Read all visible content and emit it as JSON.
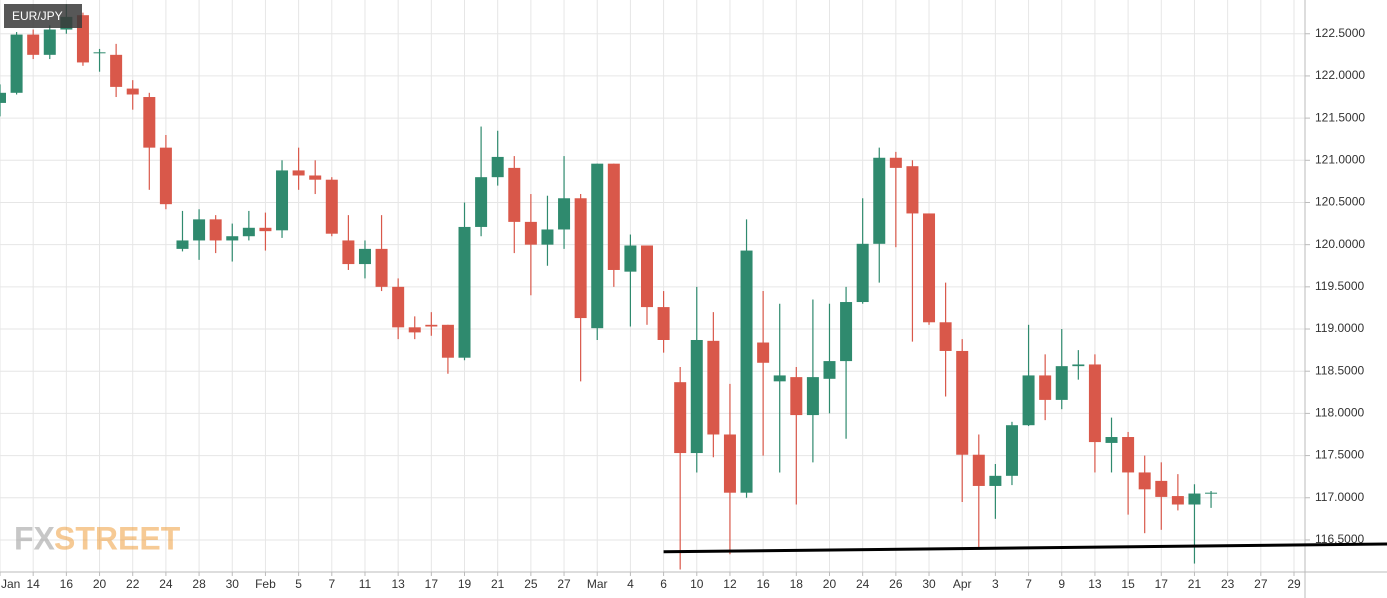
{
  "chart_data": {
    "type": "candlestick",
    "title": "EUR/JPY",
    "watermark": [
      "FX",
      "STREET"
    ],
    "categories": [
      "Jan",
      null,
      "14",
      null,
      "16",
      null,
      "20",
      null,
      "22",
      null,
      "24",
      null,
      "28",
      null,
      "30",
      null,
      "Feb",
      null,
      "5",
      null,
      "7",
      null,
      "11",
      null,
      "13",
      null,
      "17",
      null,
      "19",
      null,
      "21",
      null,
      "25",
      null,
      "27",
      null,
      "Mar",
      null,
      "4",
      null,
      "6",
      null,
      "10",
      null,
      "12",
      null,
      "16",
      null,
      "18",
      null,
      "20",
      null,
      "24",
      null,
      "26",
      null,
      "30",
      null,
      "Apr",
      null,
      "3",
      null,
      "7",
      null,
      "9",
      null,
      "13",
      null,
      "15",
      null,
      "17",
      null,
      "21",
      null,
      "23",
      null,
      "27",
      null,
      "29"
    ],
    "open": [
      121.68,
      121.8,
      122.49,
      122.25,
      122.55,
      122.72,
      122.27,
      122.25,
      121.85,
      121.75,
      121.15,
      119.95,
      120.05,
      120.3,
      120.05,
      120.1,
      120.2,
      120.17,
      120.88,
      120.82,
      120.77,
      120.05,
      119.77,
      119.95,
      119.5,
      119.02,
      119.05,
      119.05,
      118.66,
      120.21,
      120.8,
      120.91,
      120.27,
      120.0,
      120.18,
      120.55,
      119.01,
      120.96,
      119.68,
      119.99,
      119.26,
      118.37,
      117.53,
      118.86,
      117.75,
      117.06,
      118.84,
      118.38,
      118.43,
      117.98,
      118.41,
      118.62,
      119.32,
      120.01,
      121.03,
      120.93,
      120.37,
      119.08,
      118.74,
      117.51,
      117.14,
      117.26,
      117.86,
      118.45,
      118.16,
      118.56,
      118.58,
      117.65,
      117.72,
      117.3,
      117.2,
      117.02,
      116.92,
      117.05,
      null,
      null,
      null,
      null,
      null
    ],
    "high": [
      121.9,
      122.52,
      122.55,
      122.6,
      122.85,
      122.75,
      122.32,
      122.38,
      121.95,
      121.8,
      121.3,
      120.4,
      120.42,
      120.35,
      120.25,
      120.4,
      120.38,
      121.0,
      121.15,
      121.0,
      120.8,
      120.35,
      120.05,
      120.35,
      119.6,
      119.15,
      119.2,
      119.05,
      120.5,
      121.4,
      121.35,
      121.05,
      120.6,
      120.58,
      121.05,
      120.6,
      120.96,
      120.96,
      120.12,
      119.99,
      119.45,
      118.55,
      119.5,
      119.2,
      118.35,
      120.3,
      119.45,
      119.3,
      118.55,
      119.35,
      119.3,
      119.5,
      120.55,
      121.15,
      121.1,
      121.0,
      120.37,
      119.55,
      118.88,
      117.75,
      117.4,
      117.9,
      119.05,
      118.7,
      119.0,
      118.75,
      118.7,
      117.95,
      117.78,
      117.5,
      117.42,
      117.28,
      117.16,
      117.08,
      null,
      null,
      null,
      null,
      null
    ],
    "low": [
      121.52,
      121.78,
      122.2,
      122.2,
      122.5,
      122.12,
      122.05,
      121.75,
      121.6,
      120.65,
      120.42,
      119.92,
      119.82,
      119.9,
      119.8,
      120.05,
      119.93,
      120.08,
      120.65,
      120.6,
      120.1,
      119.7,
      119.6,
      119.45,
      118.88,
      118.88,
      118.92,
      118.47,
      118.63,
      120.1,
      120.7,
      119.9,
      119.4,
      119.75,
      119.95,
      118.38,
      118.87,
      119.5,
      119.03,
      119.05,
      118.72,
      116.15,
      117.3,
      117.48,
      116.33,
      117.0,
      117.5,
      117.3,
      116.92,
      117.42,
      118.0,
      117.7,
      119.3,
      119.55,
      119.97,
      118.85,
      119.05,
      118.2,
      116.95,
      116.4,
      116.75,
      117.15,
      117.85,
      117.92,
      118.05,
      118.4,
      117.3,
      117.3,
      116.8,
      116.58,
      116.62,
      116.85,
      116.22,
      116.88,
      null,
      null,
      null,
      null,
      null
    ],
    "close": [
      121.8,
      122.49,
      122.25,
      122.55,
      122.7,
      122.16,
      122.28,
      121.87,
      121.78,
      121.15,
      120.48,
      120.05,
      120.3,
      120.05,
      120.1,
      120.2,
      120.16,
      120.88,
      120.82,
      120.77,
      120.13,
      119.77,
      119.95,
      119.5,
      119.02,
      118.96,
      119.03,
      118.66,
      120.21,
      120.8,
      121.04,
      120.27,
      120.0,
      120.18,
      120.55,
      119.13,
      120.96,
      119.7,
      119.99,
      119.26,
      118.87,
      117.53,
      118.87,
      117.75,
      117.06,
      119.93,
      118.6,
      118.45,
      117.98,
      118.43,
      118.62,
      119.32,
      120.01,
      121.03,
      120.91,
      120.37,
      119.08,
      118.74,
      117.51,
      117.14,
      117.26,
      117.86,
      118.45,
      118.16,
      118.56,
      118.58,
      117.66,
      117.72,
      117.3,
      117.1,
      117.01,
      116.92,
      117.05,
      117.06,
      null,
      null,
      null,
      null,
      null
    ],
    "up_color": "#2f8a6e",
    "down_color": "#d9584a",
    "ylim": [
      116.12,
      122.9
    ],
    "yticks": [
      {
        "value": 116.5,
        "label": "116.5000"
      },
      {
        "value": 117,
        "label": "117.0000"
      },
      {
        "value": 117.5,
        "label": "117.5000"
      },
      {
        "value": 118,
        "label": "118.0000"
      },
      {
        "value": 118.5,
        "label": "118.5000"
      },
      {
        "value": 119,
        "label": "119.0000"
      },
      {
        "value": 119.5,
        "label": "119.5000"
      },
      {
        "value": 120,
        "label": "120.0000"
      },
      {
        "value": 120.5,
        "label": "120.5000"
      },
      {
        "value": 121,
        "label": "121.0000"
      },
      {
        "value": 121.5,
        "label": "121.5000"
      },
      {
        "value": 122,
        "label": "122.0000"
      },
      {
        "value": 122.5,
        "label": "122.5000"
      }
    ],
    "grid": true,
    "trendline": {
      "x": [
        40,
        78
      ],
      "y": [
        116.36,
        116.44
      ],
      "color": "#000000"
    }
  }
}
